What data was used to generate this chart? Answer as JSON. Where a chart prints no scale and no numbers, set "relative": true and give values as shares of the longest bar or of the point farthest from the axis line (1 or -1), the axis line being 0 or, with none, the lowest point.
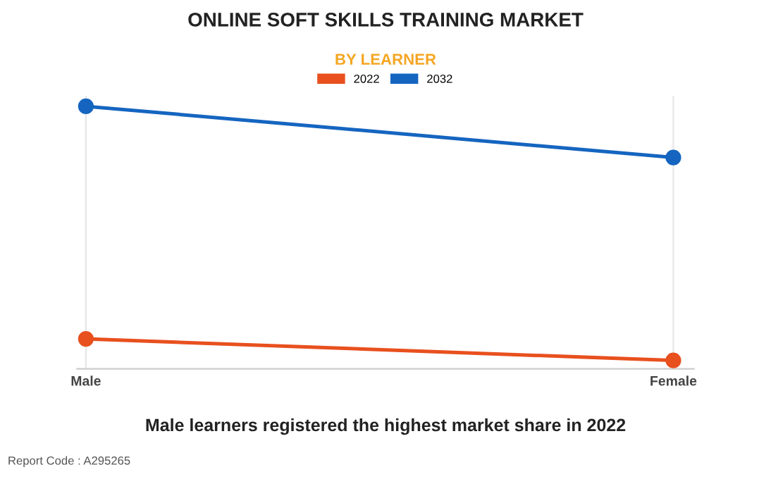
{
  "chart_data": {
    "type": "line",
    "title": "ONLINE SOFT SKILLS TRAINING MARKET",
    "subtitle": "BY LEARNER",
    "categories": [
      "Male",
      "Female"
    ],
    "relative": true,
    "series": [
      {
        "name": "2022",
        "color": "#e8501e",
        "values": [
          0.114,
          0.032
        ]
      },
      {
        "name": "2032",
        "color": "#1565c0",
        "values": [
          1,
          0.805
        ]
      }
    ],
    "marker": "circle",
    "grid": "x",
    "legend": "top",
    "annotations": [
      "Male learners registered the highest market share in 2022",
      "Report Code : A295265"
    ]
  }
}
